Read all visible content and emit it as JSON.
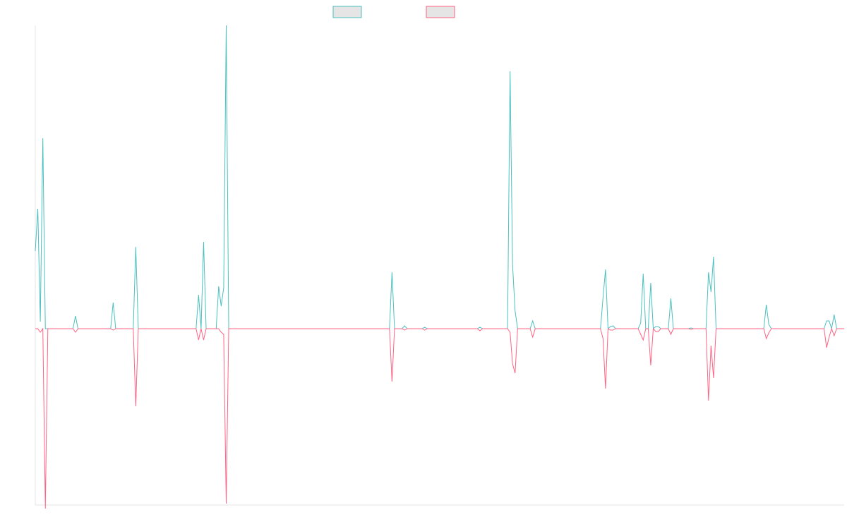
{
  "chart_data": {
    "type": "line",
    "title": "",
    "xlabel": "",
    "ylabel": "",
    "grid": false,
    "legend": "top-center",
    "ylim": [
      -250,
      430
    ],
    "series": [
      {
        "color": "#4bc0c0",
        "fill": "#e5e5e5",
        "values": [
          110,
          170,
          10,
          270,
          0,
          0,
          0,
          0,
          0,
          0,
          0,
          0,
          0,
          0,
          0,
          0,
          18,
          0,
          0,
          0,
          0,
          0,
          0,
          0,
          0,
          0,
          0,
          0,
          0,
          0,
          0,
          37,
          0,
          0,
          0,
          0,
          0,
          0,
          0,
          0,
          116,
          0,
          0,
          0,
          0,
          0,
          0,
          0,
          0,
          0,
          0,
          0,
          0,
          0,
          0,
          0,
          0,
          0,
          0,
          0,
          0,
          0,
          0,
          0,
          0,
          48,
          0,
          123,
          0,
          0,
          0,
          0,
          0,
          60,
          32,
          58,
          430,
          0,
          0,
          0,
          0,
          0,
          0,
          0,
          0,
          0,
          0,
          0,
          0,
          0,
          0,
          0,
          0,
          0,
          0,
          0,
          0,
          0,
          0,
          0,
          0,
          0,
          0,
          0,
          0,
          0,
          0,
          0,
          0,
          0,
          0,
          0,
          0,
          0,
          0,
          0,
          0,
          0,
          0,
          0,
          0,
          0,
          0,
          0,
          0,
          0,
          0,
          0,
          0,
          0,
          0,
          0,
          0,
          0,
          0,
          0,
          0,
          0,
          0,
          0,
          0,
          0,
          80,
          0,
          0,
          0,
          0,
          4,
          0,
          0,
          0,
          0,
          0,
          0,
          0,
          2,
          0,
          0,
          0,
          0,
          0,
          0,
          0,
          0,
          0,
          0,
          0,
          0,
          0,
          0,
          0,
          0,
          0,
          0,
          0,
          0,
          0,
          2,
          0,
          0,
          0,
          0,
          0,
          0,
          0,
          0,
          0,
          0,
          0,
          365,
          90,
          25,
          0,
          0,
          0,
          0,
          0,
          0,
          11,
          0,
          0,
          0,
          0,
          0,
          0,
          0,
          0,
          0,
          0,
          0,
          0,
          0,
          0,
          0,
          0,
          0,
          0,
          0,
          0,
          0,
          0,
          0,
          0,
          0,
          0,
          0,
          44,
          84,
          0,
          3,
          4,
          0,
          0,
          0,
          0,
          0,
          0,
          0,
          0,
          0,
          0,
          8,
          78,
          0,
          0,
          65,
          0,
          3,
          3,
          0,
          0,
          0,
          0,
          43,
          0,
          0,
          0,
          0,
          0,
          0,
          0,
          1,
          0,
          0,
          0,
          0,
          0,
          0,
          80,
          52,
          102,
          0,
          0,
          0,
          0,
          0,
          0,
          0,
          0,
          0,
          0,
          0,
          0,
          0,
          0,
          0,
          0,
          0,
          0,
          0,
          0,
          34,
          6,
          0,
          0,
          0,
          0,
          0,
          0,
          0,
          0,
          0,
          0,
          0,
          0,
          0,
          0,
          0,
          0,
          0,
          0,
          0,
          0,
          0,
          0,
          11,
          11,
          0,
          20,
          0,
          0,
          0,
          0
        ]
      },
      {
        "color": "#ff6384",
        "fill": "#e5e5e5",
        "values": [
          0,
          0,
          -5,
          0,
          -255,
          0,
          0,
          0,
          0,
          0,
          0,
          0,
          0,
          0,
          0,
          0,
          -5,
          0,
          0,
          0,
          0,
          0,
          0,
          0,
          0,
          0,
          0,
          0,
          0,
          0,
          0,
          -2,
          0,
          0,
          0,
          0,
          0,
          0,
          0,
          0,
          -110,
          0,
          0,
          0,
          0,
          0,
          0,
          0,
          0,
          0,
          0,
          0,
          0,
          0,
          0,
          0,
          0,
          0,
          0,
          0,
          0,
          0,
          0,
          0,
          0,
          -16,
          0,
          -16,
          0,
          0,
          0,
          0,
          0,
          0,
          -5,
          -8,
          -248,
          0,
          0,
          0,
          0,
          0,
          0,
          0,
          0,
          0,
          0,
          0,
          0,
          0,
          0,
          0,
          0,
          0,
          0,
          0,
          0,
          0,
          0,
          0,
          0,
          0,
          0,
          0,
          0,
          0,
          0,
          0,
          0,
          0,
          0,
          0,
          0,
          0,
          0,
          0,
          0,
          0,
          0,
          0,
          0,
          0,
          0,
          0,
          0,
          0,
          0,
          0,
          0,
          0,
          0,
          0,
          0,
          0,
          0,
          0,
          0,
          0,
          0,
          0,
          0,
          0,
          -75,
          0,
          0,
          0,
          0,
          -2,
          0,
          0,
          0,
          0,
          0,
          0,
          0,
          -2,
          0,
          0,
          0,
          0,
          0,
          0,
          0,
          0,
          0,
          0,
          0,
          0,
          0,
          0,
          0,
          0,
          0,
          0,
          0,
          0,
          0,
          -3,
          0,
          0,
          0,
          0,
          0,
          0,
          0,
          0,
          0,
          0,
          0,
          -5,
          -50,
          -63,
          0,
          0,
          0,
          0,
          0,
          0,
          -12,
          0,
          0,
          0,
          0,
          0,
          0,
          0,
          0,
          0,
          0,
          0,
          0,
          0,
          0,
          0,
          0,
          0,
          0,
          0,
          0,
          0,
          0,
          0,
          0,
          0,
          0,
          0,
          -14,
          -85,
          0,
          -2,
          -2,
          0,
          0,
          0,
          0,
          0,
          0,
          0,
          0,
          0,
          0,
          -8,
          -16,
          0,
          0,
          -52,
          0,
          -4,
          -4,
          0,
          0,
          0,
          0,
          -8,
          0,
          0,
          0,
          0,
          0,
          0,
          0,
          -1,
          0,
          0,
          0,
          0,
          0,
          0,
          -102,
          -24,
          -70,
          0,
          0,
          0,
          0,
          0,
          0,
          0,
          0,
          0,
          0,
          0,
          0,
          0,
          0,
          0,
          0,
          0,
          0,
          0,
          0,
          -14,
          -6,
          0,
          0,
          0,
          0,
          0,
          0,
          0,
          0,
          0,
          0,
          0,
          0,
          0,
          0,
          0,
          0,
          0,
          0,
          0,
          0,
          0,
          0,
          -27,
          -12,
          0,
          -10,
          0,
          0,
          0,
          0
        ]
      }
    ]
  }
}
